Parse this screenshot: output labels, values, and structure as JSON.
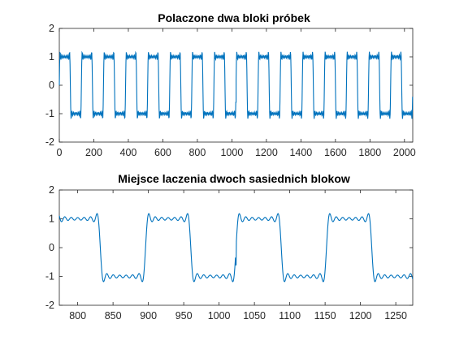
{
  "figure": {
    "background": "#ffffff"
  },
  "chart_data": [
    {
      "type": "line",
      "title": "Polaczone dwa bloki próbek",
      "xlabel": "",
      "ylabel": "",
      "xlim": [
        0,
        2048
      ],
      "ylim": [
        -2,
        2
      ],
      "xticks": [
        0,
        200,
        400,
        600,
        800,
        1000,
        1200,
        1400,
        1600,
        1800,
        2000
      ],
      "yticks": [
        -2,
        -1,
        0,
        1,
        2
      ],
      "grid": false,
      "legend": "none",
      "series": [
        {
          "color": "#0072bd",
          "signal": {
            "waveform": "square",
            "x_start": 0,
            "x_end": 2048,
            "amplitude": 1,
            "period": 128,
            "phase": 0,
            "harmonics": [
              1,
              3,
              5,
              7,
              9,
              11,
              13
            ],
            "spike": {
              "x": 1024,
              "value": -0.6
            }
          }
        }
      ]
    },
    {
      "type": "line",
      "title": "Miejsce laczenia dwoch sasiednich blokow",
      "xlabel": "",
      "ylabel": "",
      "xlim": [
        774,
        1274
      ],
      "ylim": [
        -2,
        2
      ],
      "xticks": [
        800,
        850,
        900,
        950,
        1000,
        1050,
        1100,
        1150,
        1200,
        1250
      ],
      "yticks": [
        -2,
        -1,
        0,
        1,
        2
      ],
      "grid": false,
      "legend": "none",
      "series": [
        {
          "color": "#0072bd",
          "signal": {
            "waveform": "square",
            "x_start": 774,
            "x_end": 1274,
            "amplitude": 1,
            "period": 128,
            "phase": 0,
            "harmonics": [
              1,
              3,
              5,
              7,
              9,
              11,
              13
            ],
            "spike": {
              "x": 1024,
              "value": -0.6
            }
          }
        }
      ]
    }
  ]
}
